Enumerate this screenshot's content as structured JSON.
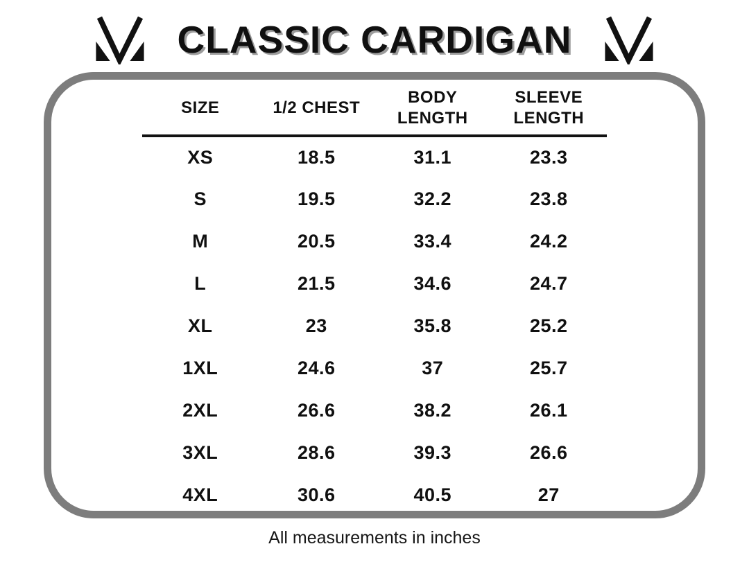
{
  "header": {
    "title": "CLASSIC CARDIGAN",
    "left_logo": "m-brand-mark",
    "right_logo": "m-brand-mark"
  },
  "chart_data": {
    "type": "table",
    "title": "CLASSIC CARDIGAN",
    "columns": [
      "SIZE",
      "1/2 CHEST",
      "BODY\nLENGTH",
      "SLEEVE\nLENGTH"
    ],
    "column_keys": [
      "size",
      "half_chest",
      "body_length",
      "sleeve_length"
    ],
    "rows": [
      {
        "size": "XS",
        "half_chest": "18.5",
        "body_length": "31.1",
        "sleeve_length": "23.3"
      },
      {
        "size": "S",
        "half_chest": "19.5",
        "body_length": "32.2",
        "sleeve_length": "23.8"
      },
      {
        "size": "M",
        "half_chest": "20.5",
        "body_length": "33.4",
        "sleeve_length": "24.2"
      },
      {
        "size": "L",
        "half_chest": "21.5",
        "body_length": "34.6",
        "sleeve_length": "24.7"
      },
      {
        "size": "XL",
        "half_chest": "23",
        "body_length": "35.8",
        "sleeve_length": "25.2"
      },
      {
        "size": "1XL",
        "half_chest": "24.6",
        "body_length": "37",
        "sleeve_length": "25.7"
      },
      {
        "size": "2XL",
        "half_chest": "26.6",
        "body_length": "38.2",
        "sleeve_length": "26.1"
      },
      {
        "size": "3XL",
        "half_chest": "28.6",
        "body_length": "39.3",
        "sleeve_length": "26.6"
      },
      {
        "size": "4XL",
        "half_chest": "30.6",
        "body_length": "40.5",
        "sleeve_length": "27"
      }
    ],
    "units_note": "All measurements in inches",
    "layout": {
      "grid": false,
      "header_rule": true,
      "frame": "rounded-rectangle"
    }
  },
  "colors": {
    "ink": "#101010",
    "frame_border": "#7d7d7d",
    "title_shadow": "#9c9c9c"
  }
}
